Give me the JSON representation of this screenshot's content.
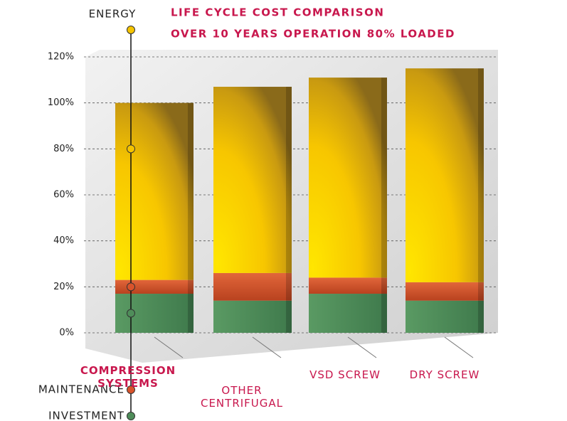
{
  "chart_data": {
    "type": "stacked_bar",
    "title": "LIFE CYCLE COST COMPARISON",
    "subtitle": "OVER 10 YEARS OPERATION 80% LOADED",
    "categories": [
      "COMPRESSION SYSTEMS",
      "OTHER CENTRIFUGAL",
      "VSD SCREW",
      "DRY SCREW"
    ],
    "series": [
      {
        "name": "INVESTMENT",
        "color": "#4f8d5a",
        "values": [
          17,
          14,
          17,
          14
        ]
      },
      {
        "name": "MAINTENANCE",
        "color": "#d9532b",
        "values": [
          6,
          12,
          7,
          8
        ]
      },
      {
        "name": "ENERGY",
        "color": "#f5c400",
        "values": [
          77,
          81,
          87,
          93
        ]
      }
    ],
    "ylim": [
      0,
      120
    ],
    "yticks": [
      {
        "value": 0,
        "label": "0%"
      },
      {
        "value": 20,
        "label": "20%"
      },
      {
        "value": 40,
        "label": "40%"
      },
      {
        "value": 60,
        "label": "60%"
      },
      {
        "value": 80,
        "label": "80%"
      },
      {
        "value": 100,
        "label": "100%"
      },
      {
        "value": 120,
        "label": "120%"
      }
    ],
    "grid": true
  }
}
